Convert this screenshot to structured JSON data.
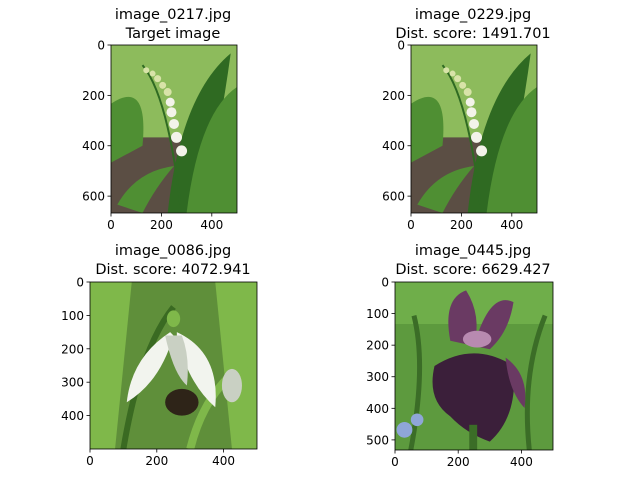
{
  "figure": {
    "background": "#ffffff",
    "axis_color": "#000000"
  },
  "chart_data": [
    {
      "type": "image",
      "title_lines": [
        "image_0217.jpg",
        "Target image"
      ],
      "image_size": [
        500,
        667
      ],
      "xlim": [
        0,
        500
      ],
      "ylim": [
        667,
        0
      ],
      "xticks": [
        0,
        200,
        400
      ],
      "yticks": [
        0,
        200,
        400,
        600
      ],
      "palette": {
        "sky": "#8dbb5c",
        "leaf": "#4f8f33",
        "leaf_dark": "#2f6a22",
        "soil": "#5b4e44",
        "flower": "#f3f3ea",
        "bud": "#d8e3a8"
      }
    },
    {
      "type": "image",
      "title_lines": [
        "image_0229.jpg",
        "Dist. score: 1491.701"
      ],
      "image_size": [
        500,
        667
      ],
      "xlim": [
        0,
        500
      ],
      "ylim": [
        667,
        0
      ],
      "xticks": [
        0,
        200,
        400
      ],
      "yticks": [
        0,
        200,
        400,
        600
      ],
      "palette": {
        "sky": "#8dbb5c",
        "leaf": "#4f8f33",
        "leaf_dark": "#2f6a22",
        "soil": "#5b4e44",
        "flower": "#f3f3ea",
        "bud": "#d8e3a8"
      }
    },
    {
      "type": "image",
      "title_lines": [
        "image_0086.jpg",
        "Dist. score: 4072.941"
      ],
      "image_size": [
        500,
        500
      ],
      "xlim": [
        0,
        500
      ],
      "ylim": [
        500,
        0
      ],
      "xticks": [
        0,
        200,
        400
      ],
      "yticks": [
        0,
        100,
        200,
        300,
        400
      ],
      "palette": {
        "bg": "#5f8f3a",
        "leaf": "#7fb84a",
        "leaf_dark": "#3a6a22",
        "petal": "#f2f4ee",
        "petal_shade": "#c9d0c3",
        "bee": "#2e2418"
      }
    },
    {
      "type": "image",
      "title_lines": [
        "image_0445.jpg",
        "Dist. score: 6629.427"
      ],
      "image_size": [
        500,
        532
      ],
      "xlim": [
        0,
        500
      ],
      "ylim": [
        532,
        0
      ],
      "xticks": [
        0,
        200,
        400
      ],
      "yticks": [
        0,
        100,
        200,
        300,
        400,
        500
      ],
      "palette": {
        "bg": "#5d9a3e",
        "leaf": "#6fae4a",
        "leaf_dark": "#3b6d27",
        "iris": "#3b1f3a",
        "iris_mid": "#6a3a63",
        "iris_light": "#b88ab0",
        "blue": "#8fa6d8"
      }
    }
  ]
}
